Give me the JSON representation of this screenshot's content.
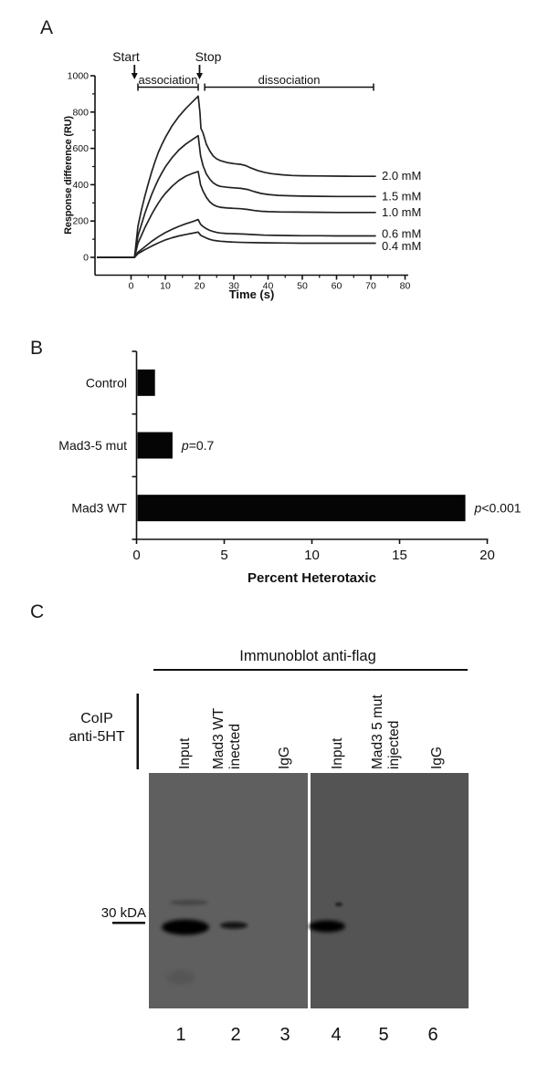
{
  "figure": {
    "panels": {
      "a": "A",
      "b": "B",
      "c": "C"
    }
  },
  "chart_data": [
    {
      "id": "spr_sensorgram",
      "type": "line",
      "title": "",
      "xlabel": "Time (s)",
      "ylabel": "Response difference (RU)",
      "xlim": [
        -10,
        80
      ],
      "ylim": [
        -98,
        1000
      ],
      "xticks": [
        0,
        10,
        20,
        30,
        40,
        50,
        60,
        70,
        80
      ],
      "yticks": [
        0,
        200,
        400,
        600,
        800,
        1000
      ],
      "grid": false,
      "legend_position": "right-of-curves",
      "annotations": {
        "start_label": "Start",
        "stop_label": "Stop",
        "association_label": "association",
        "dissociation_label": "dissociation",
        "start_time": 1,
        "stop_time": 20,
        "association_span": [
          2,
          19.6
        ],
        "dissociation_span": [
          21.5,
          70.8
        ]
      },
      "series": [
        {
          "name": "2.0 mM",
          "points": [
            [
              -10,
              0
            ],
            [
              1,
              0
            ],
            [
              2,
              170
            ],
            [
              3,
              260
            ],
            [
              4,
              335
            ],
            [
              5,
              405
            ],
            [
              6,
              470
            ],
            [
              7,
              528
            ],
            [
              8,
              580
            ],
            [
              9,
              622
            ],
            [
              10,
              660
            ],
            [
              12,
              725
            ],
            [
              14,
              777
            ],
            [
              16,
              820
            ],
            [
              18,
              858
            ],
            [
              19.6,
              888
            ],
            [
              20.1,
              800
            ],
            [
              20.4,
              710
            ],
            [
              21,
              685
            ],
            [
              22,
              622
            ],
            [
              23,
              585
            ],
            [
              24,
              558
            ],
            [
              25,
              542
            ],
            [
              26,
              533
            ],
            [
              28,
              522
            ],
            [
              30,
              516
            ],
            [
              32,
              512
            ],
            [
              33.5,
              505
            ],
            [
              35,
              492
            ],
            [
              37,
              478
            ],
            [
              39,
              468
            ],
            [
              41,
              461
            ],
            [
              44,
              455
            ],
            [
              47,
              451
            ],
            [
              50,
              449
            ],
            [
              55,
              448
            ],
            [
              60,
              447
            ],
            [
              65,
              446
            ],
            [
              71.5,
              446
            ]
          ]
        },
        {
          "name": "1.5 mM",
          "points": [
            [
              -10,
              0
            ],
            [
              1,
              0
            ],
            [
              2,
              118
            ],
            [
              3,
              180
            ],
            [
              4,
              240
            ],
            [
              5,
              295
            ],
            [
              6,
              345
            ],
            [
              7,
              390
            ],
            [
              8,
              430
            ],
            [
              9,
              466
            ],
            [
              10,
              498
            ],
            [
              12,
              550
            ],
            [
              14,
              592
            ],
            [
              16,
              624
            ],
            [
              18,
              650
            ],
            [
              19.6,
              670
            ],
            [
              20.3,
              560
            ],
            [
              21,
              505
            ],
            [
              22,
              458
            ],
            [
              23,
              430
            ],
            [
              24,
              410
            ],
            [
              25,
              398
            ],
            [
              26,
              391
            ],
            [
              28,
              386
            ],
            [
              30,
              383
            ],
            [
              32,
              380
            ],
            [
              34,
              374
            ],
            [
              36,
              362
            ],
            [
              38,
              352
            ],
            [
              40,
              346
            ],
            [
              43,
              341
            ],
            [
              46,
              339
            ],
            [
              50,
              337
            ],
            [
              55,
              336
            ],
            [
              60,
              335
            ],
            [
              71.5,
              335
            ]
          ]
        },
        {
          "name": "1.0 mM",
          "points": [
            [
              -10,
              0
            ],
            [
              1,
              0
            ],
            [
              2,
              78
            ],
            [
              3,
              120
            ],
            [
              4,
              162
            ],
            [
              5,
              200
            ],
            [
              6,
              236
            ],
            [
              7,
              270
            ],
            [
              8,
              300
            ],
            [
              9,
              328
            ],
            [
              10,
              352
            ],
            [
              12,
              392
            ],
            [
              14,
              424
            ],
            [
              16,
              447
            ],
            [
              18,
              463
            ],
            [
              19.6,
              473
            ],
            [
              20.3,
              400
            ],
            [
              21,
              365
            ],
            [
              22,
              330
            ],
            [
              23,
              305
            ],
            [
              24,
              290
            ],
            [
              25,
              281
            ],
            [
              26,
              276
            ],
            [
              28,
              272
            ],
            [
              30,
              270
            ],
            [
              32,
              268
            ],
            [
              34,
              264
            ],
            [
              36,
              258
            ],
            [
              38,
              254
            ],
            [
              40,
              252
            ],
            [
              44,
              250
            ],
            [
              48,
              249
            ],
            [
              55,
              248
            ],
            [
              60,
              247
            ],
            [
              71.5,
              247
            ]
          ]
        },
        {
          "name": "0.6 mM",
          "points": [
            [
              -10,
              0
            ],
            [
              1,
              0
            ],
            [
              2,
              28
            ],
            [
              4,
              58
            ],
            [
              6,
              88
            ],
            [
              8,
              114
            ],
            [
              10,
              136
            ],
            [
              12,
              155
            ],
            [
              14,
              171
            ],
            [
              16,
              185
            ],
            [
              18,
              197
            ],
            [
              19.6,
              208
            ],
            [
              20.3,
              182
            ],
            [
              21,
              170
            ],
            [
              22,
              158
            ],
            [
              23,
              148
            ],
            [
              24,
              142
            ],
            [
              25,
              137
            ],
            [
              26,
              134
            ],
            [
              28,
              131
            ],
            [
              30,
              130
            ],
            [
              33,
              128
            ],
            [
              36,
              125
            ],
            [
              39,
              122
            ],
            [
              42,
              121
            ],
            [
              46,
              120
            ],
            [
              50,
              119
            ],
            [
              55,
              119
            ],
            [
              60,
              118
            ],
            [
              71.5,
              118
            ]
          ]
        },
        {
          "name": "0.4 mM",
          "points": [
            [
              -10,
              0
            ],
            [
              1,
              0
            ],
            [
              2,
              20
            ],
            [
              4,
              42
            ],
            [
              6,
              62
            ],
            [
              8,
              80
            ],
            [
              10,
              96
            ],
            [
              12,
              108
            ],
            [
              14,
              118
            ],
            [
              16,
              126
            ],
            [
              18,
              133
            ],
            [
              19.6,
              139
            ],
            [
              20.3,
              122
            ],
            [
              21,
              115
            ],
            [
              22,
              106
            ],
            [
              23,
              99
            ],
            [
              24,
              94
            ],
            [
              25,
              91
            ],
            [
              26,
              89
            ],
            [
              28,
              86
            ],
            [
              30,
              84
            ],
            [
              33,
              82
            ],
            [
              36,
              81
            ],
            [
              40,
              80
            ],
            [
              45,
              79
            ],
            [
              50,
              78
            ],
            [
              60,
              78
            ],
            [
              71.5,
              78
            ]
          ]
        }
      ]
    },
    {
      "id": "heterotaxy_bars",
      "type": "bar",
      "orientation": "horizontal",
      "categories": [
        "Control",
        "Mad3-5 mut",
        "Mad3 WT"
      ],
      "values": [
        1.0,
        2.0,
        18.7
      ],
      "annotations": [
        "",
        "p=0.7",
        "p<0.001"
      ],
      "title": "",
      "xlabel": "Percent Heterotaxic",
      "ylabel": "",
      "xlim": [
        0,
        20
      ],
      "xticks": [
        0,
        5,
        10,
        15,
        20
      ],
      "grid": false,
      "bar_color": "#050505"
    }
  ],
  "panel_c": {
    "header": "Immunoblot anti-flag",
    "row_label": [
      "CoIP",
      "anti-5HT"
    ],
    "lane_labels": [
      [
        "Input"
      ],
      [
        "Mad3 WT",
        "inected"
      ],
      [
        "IgG"
      ],
      [
        "Input"
      ],
      [
        "Mad3 5 mut",
        "injected"
      ],
      [
        "IgG"
      ]
    ],
    "marker_label": "30 kDA",
    "lane_numbers": [
      "1",
      "2",
      "3",
      "4",
      "5",
      "6"
    ],
    "bands": [
      {
        "lane": 1,
        "strength": "strong"
      },
      {
        "lane": 2,
        "strength": "weak"
      },
      {
        "lane": 4,
        "strength": "medium"
      }
    ],
    "artifacts": [
      "faint-upper-band-lane-1",
      "faint-speck-lane-4",
      "faint-smudge-lane-1"
    ],
    "blot_colors": {
      "left_membrane": "#5f5f5f",
      "right_membrane": "#545454"
    }
  }
}
